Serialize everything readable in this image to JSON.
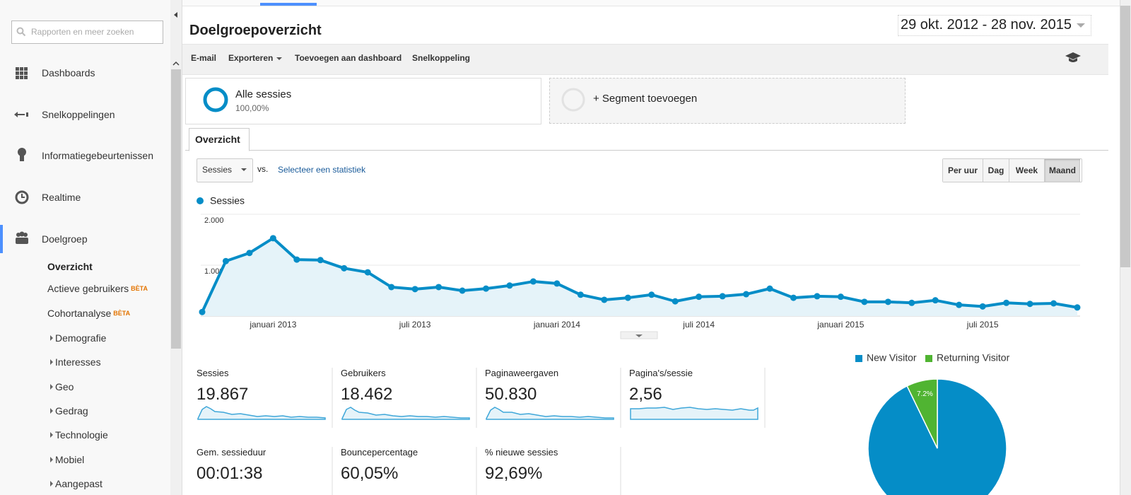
{
  "sidebar": {
    "search_placeholder": "Rapporten en meer zoeken",
    "nav": [
      "Dashboards",
      "Snelkoppelingen",
      "Informatiegebeurtenissen",
      "Realtime",
      "Doelgroep"
    ],
    "submenu": [
      {
        "label": "Overzicht"
      },
      {
        "label": "Actieve gebruikers",
        "badge": "BÈTA"
      },
      {
        "label": "Cohortanalyse",
        "badge": "BÈTA"
      },
      {
        "label": "Demografie"
      },
      {
        "label": "Interesses"
      },
      {
        "label": "Geo"
      },
      {
        "label": "Gedrag"
      },
      {
        "label": "Technologie"
      },
      {
        "label": "Mobiel"
      },
      {
        "label": "Aangepast"
      }
    ]
  },
  "header": {
    "title": "Doelgroepoverzicht",
    "date_range": "29 okt. 2012 - 28 nov. 2015"
  },
  "toolbar": [
    "E-mail",
    "Exporteren",
    "Toevoegen aan dashboard",
    "Snelkoppeling"
  ],
  "segments": [
    {
      "name": "Alle sessies",
      "share": "100,00%"
    },
    {
      "name": "+ Segment toevoegen"
    }
  ],
  "tab": "Overzicht",
  "controls": {
    "metric": "Sessies",
    "vs": "vs.",
    "select": "Selecteer een statistiek",
    "granularity": [
      "Per uur",
      "Dag",
      "Week",
      "Maand"
    ],
    "active_index": 3
  },
  "metrics": [
    {
      "label": "Sessies",
      "value": "19.867"
    },
    {
      "label": "Gebruikers",
      "value": "18.462"
    },
    {
      "label": "Paginaweergaven",
      "value": "50.830"
    },
    {
      "label": "Pagina's/sessie",
      "value": "2,56"
    },
    {
      "label": "Gem. sessieduur",
      "value": "00:01:38"
    },
    {
      "label": "Bouncepercentage",
      "value": "60,05%"
    },
    {
      "label": "% nieuwe sessies",
      "value": "92,69%"
    }
  ],
  "chart_data": [
    {
      "type": "line",
      "categories": [
        null,
        null,
        null,
        "januari 2013",
        null,
        null,
        null,
        null,
        null,
        "juli 2013",
        null,
        null,
        null,
        null,
        null,
        "januari 2014",
        null,
        null,
        null,
        null,
        null,
        "juli 2014",
        null,
        null,
        null,
        null,
        null,
        "januari 2015",
        null,
        null,
        null,
        null,
        null,
        "juli 2015",
        null,
        null,
        null,
        null
      ],
      "series": [
        {
          "name": "Sessies",
          "color": "#058dc7",
          "values": [
            80,
            1080,
            1240,
            1530,
            1110,
            1100,
            940,
            860,
            570,
            530,
            570,
            500,
            540,
            600,
            680,
            640,
            420,
            320,
            360,
            420,
            290,
            380,
            390,
            430,
            540,
            360,
            390,
            380,
            280,
            280,
            260,
            310,
            220,
            190,
            260,
            240,
            250,
            170
          ]
        }
      ],
      "ylim": [
        0,
        2000
      ],
      "yticks": [
        {
          "value": 1000,
          "label": "1.000"
        },
        {
          "value": 2000,
          "label": "2.000"
        }
      ],
      "grid": true,
      "area": true
    },
    {
      "type": "pie",
      "categories": [
        "New Visitor",
        "Returning Visitor"
      ],
      "values": [
        92.8,
        7.2
      ],
      "value_labels": [
        null,
        "7.2%"
      ],
      "colors": [
        "#058dc7",
        "#50b432"
      ],
      "legend": "top"
    }
  ]
}
